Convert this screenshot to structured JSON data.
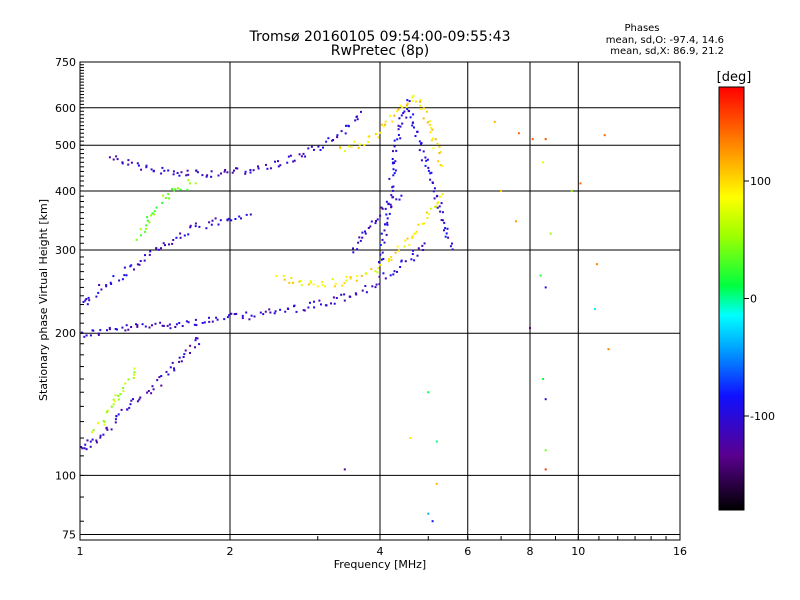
{
  "chart_data": {
    "type": "scatter",
    "title": "Tromsø 20160105 09:54:00-09:55:43",
    "subtitle": "RwPretec (8p)",
    "xlabel": "Frequency [MHz]",
    "ylabel": "Stationary phase Virtual Height [km]",
    "x_scale": "log",
    "y_scale": "log",
    "xlim": [
      1,
      16
    ],
    "ylim": [
      73,
      750
    ],
    "x_ticks": [
      1,
      2,
      4,
      6,
      8,
      10,
      16
    ],
    "y_ticks": [
      75,
      100,
      200,
      300,
      400,
      500,
      600,
      750
    ],
    "grid": true,
    "stats_header": "Phases",
    "stats_lines": [
      "mean, sd,O: -97.4, 14.6",
      "mean, sd,X: 86.9, 21.2"
    ],
    "colorbar": {
      "label": "[deg]",
      "min": -180,
      "max": 180,
      "ticks": [
        100,
        0,
        -100
      ]
    },
    "traces": [
      {
        "x": [
          1.0,
          1.05,
          1.1,
          1.2,
          1.35,
          1.5,
          1.7,
          1.9,
          2.1,
          2.4,
          2.8,
          3.2,
          3.6,
          3.9,
          4.1,
          4.3,
          4.6,
          5.0
        ],
        "y": [
          200,
          201,
          203,
          205,
          208,
          210,
          212,
          215,
          218,
          222,
          228,
          235,
          245,
          255,
          265,
          275,
          290,
          310
        ],
        "phase": -110
      },
      {
        "x": [
          1.15,
          1.25,
          1.4,
          1.6,
          1.8,
          2.0,
          2.2,
          2.5,
          2.8,
          3.1,
          3.4,
          3.7
        ],
        "y": [
          480,
          455,
          445,
          440,
          438,
          440,
          445,
          460,
          480,
          510,
          545,
          590
        ],
        "phase": -110
      },
      {
        "x": [
          1.0,
          1.05,
          1.1,
          1.2,
          1.3,
          1.4,
          1.55,
          1.7,
          1.85,
          2.0,
          2.2
        ],
        "y": [
          230,
          240,
          250,
          265,
          280,
          300,
          320,
          335,
          345,
          350,
          355
        ],
        "phase": -105
      },
      {
        "x": [
          2.5,
          2.7,
          3.0,
          3.3,
          3.6,
          3.9,
          4.2,
          4.6,
          5.0,
          5.3
        ],
        "y": [
          265,
          258,
          255,
          258,
          265,
          275,
          290,
          320,
          360,
          400
        ],
        "phase": 90
      },
      {
        "x": [
          3.3,
          3.5,
          3.7,
          3.9,
          4.1,
          4.3,
          4.5,
          4.7,
          5.0,
          5.3
        ],
        "y": [
          490,
          500,
          510,
          530,
          560,
          590,
          620,
          640,
          560,
          450
        ],
        "phase": 95
      },
      {
        "x": [
          1.3,
          1.4,
          1.5,
          1.6,
          1.7
        ],
        "y": [
          320,
          360,
          395,
          410,
          420
        ],
        "phase": 40
      },
      {
        "x": [
          1.05,
          1.1,
          1.15,
          1.2,
          1.25,
          1.3
        ],
        "y": [
          125,
          130,
          140,
          150,
          160,
          170
        ],
        "phase": 60
      },
      {
        "x": [
          3.5,
          3.7,
          4.0,
          4.4
        ],
        "y": [
          300,
          330,
          360,
          400
        ],
        "phase": -110
      },
      {
        "x": [
          1.0,
          1.03,
          1.06,
          1.1,
          1.15,
          1.2,
          1.3,
          1.45,
          1.6,
          1.75
        ],
        "y": [
          115,
          116,
          118,
          122,
          128,
          135,
          145,
          160,
          180,
          200
        ],
        "phase": -112
      },
      {
        "x": [
          4.0,
          4.1,
          4.2,
          4.3,
          4.4,
          4.5,
          4.8,
          5.2,
          5.6
        ],
        "y": [
          280,
          350,
          420,
          500,
          560,
          620,
          500,
          380,
          300
        ],
        "phase": -100
      }
    ],
    "scatter": [
      {
        "x": 6.8,
        "y": 560,
        "phase": 110
      },
      {
        "x": 7.6,
        "y": 530,
        "phase": 140
      },
      {
        "x": 8.1,
        "y": 515,
        "phase": 145
      },
      {
        "x": 8.6,
        "y": 515,
        "phase": 150
      },
      {
        "x": 11.3,
        "y": 525,
        "phase": 140
      },
      {
        "x": 8.5,
        "y": 460,
        "phase": 80
      },
      {
        "x": 7.0,
        "y": 400,
        "phase": 100
      },
      {
        "x": 9.7,
        "y": 400,
        "phase": 50
      },
      {
        "x": 10.1,
        "y": 415,
        "phase": 140
      },
      {
        "x": 8.8,
        "y": 325,
        "phase": 50
      },
      {
        "x": 7.5,
        "y": 345,
        "phase": 120
      },
      {
        "x": 10.9,
        "y": 280,
        "phase": 130
      },
      {
        "x": 8.4,
        "y": 265,
        "phase": 20
      },
      {
        "x": 8.6,
        "y": 250,
        "phase": -100
      },
      {
        "x": 8.0,
        "y": 205,
        "phase": -140
      },
      {
        "x": 8.5,
        "y": 160,
        "phase": 10
      },
      {
        "x": 8.6,
        "y": 145,
        "phase": -110
      },
      {
        "x": 8.6,
        "y": 113,
        "phase": 40
      },
      {
        "x": 8.6,
        "y": 103,
        "phase": 160
      },
      {
        "x": 5.0,
        "y": 83,
        "phase": -40
      },
      {
        "x": 5.1,
        "y": 80,
        "phase": -90
      },
      {
        "x": 3.4,
        "y": 103,
        "phase": -130
      },
      {
        "x": 4.6,
        "y": 120,
        "phase": 90
      },
      {
        "x": 5.2,
        "y": 118,
        "phase": 0
      },
      {
        "x": 5.0,
        "y": 150,
        "phase": 10
      },
      {
        "x": 11.5,
        "y": 185,
        "phase": 130
      },
      {
        "x": 10.8,
        "y": 225,
        "phase": -20
      },
      {
        "x": 5.2,
        "y": 96,
        "phase": 110
      }
    ]
  }
}
